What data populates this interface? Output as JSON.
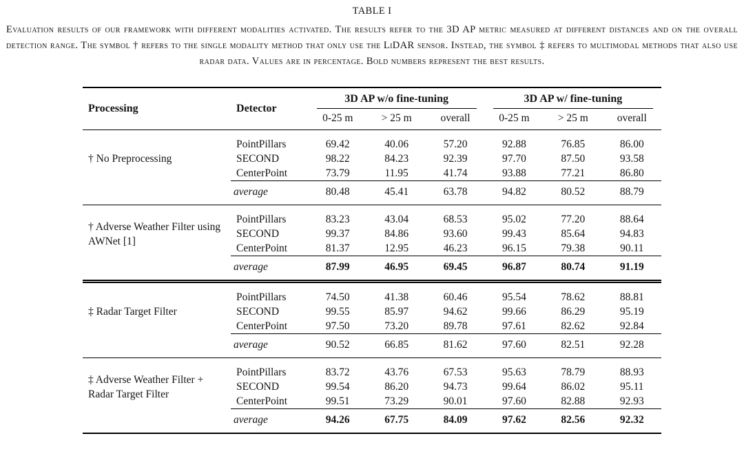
{
  "page": {
    "title": "TABLE I",
    "caption": "Evaluation results of our framework with different modalities activated. The results refer to the 3D AP metric measured at different distances and on the overall detection range. The symbol † refers to the single modality method that only use the LiDAR sensor. Instead, the symbol ‡ refers to multimodal methods that also use radar data. Values are in percentage. Bold numbers represent the best results."
  },
  "table": {
    "headers": {
      "processing": "Processing",
      "detector": "Detector",
      "group_wo": "3D AP w/o fine-tuning",
      "group_w": "3D AP w/ fine-tuning",
      "sub": [
        "0-25 m",
        "> 25 m",
        "overall",
        "0-25 m",
        "> 25 m",
        "overall"
      ]
    },
    "groups": [
      {
        "processing": "† No Preprocessing",
        "rows": [
          {
            "detector": "PointPillars",
            "values": [
              "69.42",
              "40.06",
              "57.20",
              "92.88",
              "76.85",
              "86.00"
            ]
          },
          {
            "detector": "SECOND",
            "values": [
              "98.22",
              "84.23",
              "92.39",
              "97.70",
              "87.50",
              "93.58"
            ]
          },
          {
            "detector": "CenterPoint",
            "values": [
              "73.79",
              "11.95",
              "41.74",
              "93.88",
              "77.21",
              "86.80"
            ]
          }
        ],
        "average": {
          "label": "average",
          "values": [
            "80.48",
            "45.41",
            "63.78",
            "94.82",
            "80.52",
            "88.79"
          ],
          "bold": false
        },
        "separator": "single"
      },
      {
        "processing": "† Adverse Weather Filter using AWNet [1]",
        "rows": [
          {
            "detector": "PointPillars",
            "values": [
              "83.23",
              "43.04",
              "68.53",
              "95.02",
              "77.20",
              "88.64"
            ]
          },
          {
            "detector": "SECOND",
            "values": [
              "99.37",
              "84.86",
              "93.60",
              "99.43",
              "85.64",
              "94.83"
            ]
          },
          {
            "detector": "CenterPoint",
            "values": [
              "81.37",
              "12.95",
              "46.23",
              "96.15",
              "79.38",
              "90.11"
            ]
          }
        ],
        "average": {
          "label": "average",
          "values": [
            "87.99",
            "46.95",
            "69.45",
            "96.87",
            "80.74",
            "91.19"
          ],
          "bold": true
        },
        "separator": "double"
      },
      {
        "processing": "‡ Radar Target Filter",
        "rows": [
          {
            "detector": "PointPillars",
            "values": [
              "74.50",
              "41.38",
              "60.46",
              "95.54",
              "78.62",
              "88.81"
            ]
          },
          {
            "detector": "SECOND",
            "values": [
              "99.55",
              "85.97",
              "94.62",
              "99.66",
              "86.29",
              "95.19"
            ]
          },
          {
            "detector": "CenterPoint",
            "values": [
              "97.50",
              "73.20",
              "89.78",
              "97.61",
              "82.62",
              "92.84"
            ]
          }
        ],
        "average": {
          "label": "average",
          "values": [
            "90.52",
            "66.85",
            "81.62",
            "97.60",
            "82.51",
            "92.28"
          ],
          "bold": false
        },
        "separator": "single"
      },
      {
        "processing": "‡ Adverse Weather Filter + Radar Target Filter",
        "rows": [
          {
            "detector": "PointPillars",
            "values": [
              "83.72",
              "43.76",
              "67.53",
              "95.63",
              "78.79",
              "88.93"
            ]
          },
          {
            "detector": "SECOND",
            "values": [
              "99.54",
              "86.20",
              "94.73",
              "99.64",
              "86.02",
              "95.11"
            ]
          },
          {
            "detector": "CenterPoint",
            "values": [
              "99.51",
              "73.29",
              "90.01",
              "97.60",
              "82.88",
              "92.93"
            ]
          }
        ],
        "average": {
          "label": "average",
          "values": [
            "94.26",
            "67.75",
            "84.09",
            "97.62",
            "82.56",
            "92.32"
          ],
          "bold": true
        },
        "separator": "bottom"
      }
    ]
  }
}
